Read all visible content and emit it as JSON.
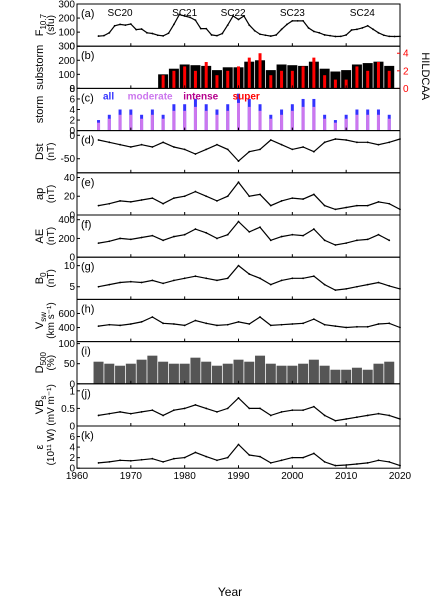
{
  "chart_data": {
    "type": "line",
    "title": "",
    "xlabel": "Year",
    "xlim": [
      1960,
      2020
    ],
    "x_ticks": [
      1960,
      1970,
      1980,
      1990,
      2000,
      2010,
      2020
    ],
    "cycles": [
      {
        "label": "SC20",
        "year": 1968
      },
      {
        "label": "SC21",
        "year": 1980
      },
      {
        "label": "SC22",
        "year": 1989
      },
      {
        "label": "SC23",
        "year": 2000
      },
      {
        "label": "SC24",
        "year": 2013
      }
    ],
    "panels": [
      {
        "tag": "(a)",
        "ylabel": "F10.7",
        "ylabel_main": "F",
        "ylabel_sub": "10.7",
        "yunit": "(sfu)",
        "ylim": [
          0,
          300
        ],
        "yticks": [
          0,
          100,
          200,
          300
        ],
        "kind": "line",
        "x": [
          1964,
          1965,
          1966,
          1967,
          1968,
          1969,
          1970,
          1971,
          1972,
          1973,
          1974,
          1975,
          1976,
          1977,
          1978,
          1979,
          1980,
          1981,
          1982,
          1983,
          1984,
          1985,
          1986,
          1987,
          1988,
          1989,
          1990,
          1991,
          1992,
          1993,
          1994,
          1995,
          1996,
          1997,
          1998,
          1999,
          2000,
          2001,
          2002,
          2003,
          2004,
          2005,
          2006,
          2007,
          2008,
          2009,
          2010,
          2011,
          2012,
          2013,
          2014,
          2015,
          2016,
          2017,
          2018,
          2019,
          2020
        ],
        "values": [
          72,
          75,
          95,
          145,
          155,
          150,
          158,
          118,
          122,
          95,
          90,
          78,
          73,
          92,
          155,
          225,
          215,
          205,
          185,
          125,
          125,
          80,
          75,
          90,
          150,
          215,
          190,
          215,
          150,
          110,
          85,
          78,
          72,
          80,
          120,
          155,
          180,
          180,
          180,
          130,
          105,
          95,
          80,
          75,
          69,
          70,
          80,
          115,
          120,
          130,
          145,
          120,
          95,
          78,
          70,
          69,
          70
        ]
      },
      {
        "tag": "(b)",
        "ylabel": "substorm",
        "yunit": "",
        "ylim": [
          0,
          300
        ],
        "yticks": [
          0,
          100,
          200,
          300
        ],
        "kind": "bars",
        "right_axis": {
          "label": "HILDCAA",
          "ticks": [
            0,
            2,
            4
          ],
          "max": 4.8
        },
        "x": [
          1976,
          1978,
          1980,
          1982,
          1984,
          1986,
          1988,
          1990,
          1992,
          1994,
          1996,
          1998,
          2000,
          2002,
          2004,
          2006,
          2008,
          2010,
          2012,
          2014,
          2016,
          2018
        ],
        "values": [
          100,
          140,
          170,
          165,
          160,
          130,
          150,
          150,
          190,
          200,
          130,
          170,
          165,
          160,
          190,
          140,
          120,
          130,
          170,
          180,
          190,
          160
        ],
        "hildcaa": [
          1.5,
          2.0,
          2.5,
          2.0,
          3.0,
          1.5,
          2.0,
          2.5,
          3.5,
          4.0,
          1.5,
          2.0,
          2.0,
          2.5,
          3.5,
          1.5,
          1.0,
          1.0,
          2.5,
          2.0,
          3.0,
          2.0
        ]
      },
      {
        "tag": "(c)",
        "ylabel": "storm",
        "yunit": "",
        "ylim": [
          0,
          8
        ],
        "yticks": [
          0,
          2,
          4,
          6,
          8
        ],
        "kind": "stack",
        "legend": [
          {
            "label": "all",
            "color": "#3333ff"
          },
          {
            "label": "moderate",
            "color": "#cc77ee"
          },
          {
            "label": "intense",
            "color": "#b5008c"
          },
          {
            "label": "super",
            "color": "#ff0000"
          }
        ],
        "x": [
          1964,
          1966,
          1968,
          1970,
          1972,
          1974,
          1976,
          1978,
          1980,
          1982,
          1984,
          1986,
          1988,
          1990,
          1992,
          1994,
          1996,
          1998,
          2000,
          2002,
          2004,
          2006,
          2008,
          2010,
          2012,
          2014,
          2016,
          2018
        ],
        "values": [
          2,
          3,
          4,
          4,
          3,
          4,
          3,
          5,
          5,
          6,
          5,
          4,
          5,
          7,
          6,
          5,
          3,
          4,
          5,
          6,
          6,
          3,
          2,
          3,
          4,
          4,
          4,
          3
        ]
      },
      {
        "tag": "(d)",
        "ylabel": "Dst",
        "yunit": "(nT)",
        "ylim": [
          -80,
          10
        ],
        "yticks": [
          -50,
          0
        ],
        "kind": "line",
        "x": [
          1964,
          1966,
          1968,
          1970,
          1972,
          1974,
          1976,
          1978,
          1980,
          1982,
          1984,
          1986,
          1988,
          1990,
          1992,
          1994,
          1996,
          1998,
          2000,
          2002,
          2004,
          2006,
          2008,
          2010,
          2012,
          2014,
          2016,
          2018,
          2020
        ],
        "values": [
          -10,
          -15,
          -20,
          -25,
          -20,
          -25,
          -15,
          -25,
          -30,
          -40,
          -30,
          -20,
          -30,
          -55,
          -35,
          -30,
          -10,
          -20,
          -30,
          -25,
          -35,
          -15,
          -8,
          -10,
          -15,
          -15,
          -20,
          -15,
          -8
        ]
      },
      {
        "tag": "(e)",
        "ylabel": "ap",
        "yunit": "(nT)",
        "ylim": [
          0,
          45
        ],
        "yticks": [
          0,
          20,
          40
        ],
        "kind": "line",
        "x": [
          1964,
          1966,
          1968,
          1970,
          1972,
          1974,
          1976,
          1978,
          1980,
          1982,
          1984,
          1986,
          1988,
          1990,
          1992,
          1994,
          1996,
          1998,
          2000,
          2002,
          2004,
          2006,
          2008,
          2010,
          2012,
          2014,
          2016,
          2018,
          2020
        ],
        "values": [
          10,
          12,
          15,
          14,
          16,
          18,
          12,
          18,
          20,
          25,
          20,
          15,
          20,
          35,
          20,
          22,
          10,
          15,
          18,
          17,
          22,
          10,
          6,
          8,
          10,
          10,
          14,
          12,
          6
        ]
      },
      {
        "tag": "(f)",
        "ylabel": "AE",
        "yunit": "(nT)",
        "ylim": [
          0,
          450
        ],
        "yticks": [
          0,
          200,
          400
        ],
        "kind": "line",
        "x": [
          1964,
          1966,
          1968,
          1970,
          1972,
          1974,
          1976,
          1978,
          1980,
          1982,
          1984,
          1986,
          1988,
          1990,
          1992,
          1994,
          1996,
          1998,
          2000,
          2002,
          2004,
          2006,
          2008,
          2010,
          2012,
          2014,
          2016,
          2018
        ],
        "values": [
          150,
          170,
          200,
          190,
          210,
          230,
          180,
          220,
          240,
          300,
          260,
          200,
          240,
          380,
          270,
          320,
          180,
          220,
          240,
          230,
          300,
          180,
          130,
          150,
          180,
          190,
          240,
          180
        ]
      },
      {
        "tag": "(g)",
        "ylabel": "B0",
        "ylabel_main": "B",
        "ylabel_sub": "0",
        "yunit": "(nT)",
        "ylim": [
          2,
          12
        ],
        "yticks": [
          5,
          10
        ],
        "kind": "line",
        "x": [
          1964,
          1966,
          1968,
          1970,
          1972,
          1974,
          1976,
          1978,
          1980,
          1982,
          1984,
          1986,
          1988,
          1990,
          1992,
          1994,
          1996,
          1998,
          2000,
          2002,
          2004,
          2006,
          2008,
          2010,
          2012,
          2014,
          2016,
          2018,
          2020
        ],
        "values": [
          5,
          5.5,
          6,
          6.2,
          6,
          6.5,
          5.8,
          6.5,
          7,
          7.5,
          7,
          6.5,
          7,
          10,
          8,
          7,
          5.5,
          6.5,
          7,
          7,
          7.5,
          5.5,
          4.2,
          4.5,
          5,
          5.5,
          6,
          5.2,
          4.5
        ]
      },
      {
        "tag": "(h)",
        "ylabel": "Vsw",
        "ylabel_main": "V",
        "ylabel_sub": "sw",
        "yunit": "(km s⁻¹)",
        "ylim": [
          200,
          800
        ],
        "yticks": [
          400,
          600
        ],
        "kind": "line",
        "x": [
          1964,
          1966,
          1968,
          1970,
          1972,
          1974,
          1976,
          1978,
          1980,
          1982,
          1984,
          1986,
          1988,
          1990,
          1992,
          1994,
          1996,
          1998,
          2000,
          2002,
          2004,
          2006,
          2008,
          2010,
          2012,
          2014,
          2016,
          2018,
          2020
        ],
        "values": [
          420,
          440,
          430,
          450,
          480,
          550,
          460,
          450,
          430,
          500,
          460,
          430,
          440,
          480,
          450,
          550,
          430,
          440,
          450,
          460,
          520,
          440,
          420,
          400,
          410,
          410,
          450,
          460,
          400
        ]
      },
      {
        "tag": "(i)",
        "ylabel": "D500",
        "ylabel_main": "D",
        "ylabel_sub": "500",
        "yunit": "(%)",
        "ylim": [
          0,
          105
        ],
        "yticks": [
          0,
          50,
          100
        ],
        "kind": "bars",
        "x": [
          1964,
          1966,
          1968,
          1970,
          1972,
          1974,
          1976,
          1978,
          1980,
          1982,
          1984,
          1986,
          1988,
          1990,
          1992,
          1994,
          1996,
          1998,
          2000,
          2002,
          2004,
          2006,
          2008,
          2010,
          2012,
          2014,
          2016,
          2018
        ],
        "values": [
          55,
          50,
          45,
          50,
          60,
          70,
          55,
          50,
          50,
          65,
          55,
          45,
          50,
          60,
          55,
          70,
          50,
          45,
          45,
          50,
          60,
          45,
          35,
          35,
          40,
          35,
          50,
          55
        ]
      },
      {
        "tag": "(j)",
        "ylabel": "VBs",
        "ylabel_main": "VB",
        "ylabel_sub": "s",
        "yunit": "(mV m⁻¹)",
        "ylim": [
          0,
          1.2
        ],
        "yticks": [
          0.0,
          0.5,
          1.0
        ],
        "kind": "line",
        "x": [
          1964,
          1966,
          1968,
          1970,
          1972,
          1974,
          1976,
          1978,
          1980,
          1982,
          1984,
          1986,
          1988,
          1990,
          1992,
          1994,
          1996,
          1998,
          2000,
          2002,
          2004,
          2006,
          2008,
          2010,
          2012,
          2014,
          2016,
          2018,
          2020
        ],
        "values": [
          0.3,
          0.35,
          0.4,
          0.35,
          0.4,
          0.45,
          0.3,
          0.45,
          0.5,
          0.6,
          0.5,
          0.4,
          0.5,
          0.8,
          0.5,
          0.5,
          0.3,
          0.4,
          0.45,
          0.45,
          0.55,
          0.3,
          0.15,
          0.2,
          0.25,
          0.3,
          0.35,
          0.3,
          0.2
        ]
      },
      {
        "tag": "(k)",
        "ylabel": "ε",
        "yunit": "(10¹¹ W)",
        "ylim": [
          0,
          8
        ],
        "yticks": [
          0,
          2,
          4,
          6
        ],
        "kind": "line",
        "x": [
          1964,
          1966,
          1968,
          1970,
          1972,
          1974,
          1976,
          1978,
          1980,
          1982,
          1984,
          1986,
          1988,
          1990,
          1992,
          1994,
          1996,
          1998,
          2000,
          2002,
          2004,
          2006,
          2008,
          2010,
          2012,
          2014,
          2016,
          2018,
          2020
        ],
        "values": [
          1.0,
          1.2,
          1.5,
          1.4,
          1.6,
          1.8,
          1.2,
          1.8,
          2.0,
          3.0,
          2.2,
          1.5,
          2.0,
          4.5,
          2.5,
          2.2,
          1.0,
          1.5,
          2.0,
          2.0,
          2.8,
          1.2,
          0.5,
          0.6,
          0.8,
          1.0,
          1.5,
          1.2,
          0.5
        ]
      }
    ]
  }
}
